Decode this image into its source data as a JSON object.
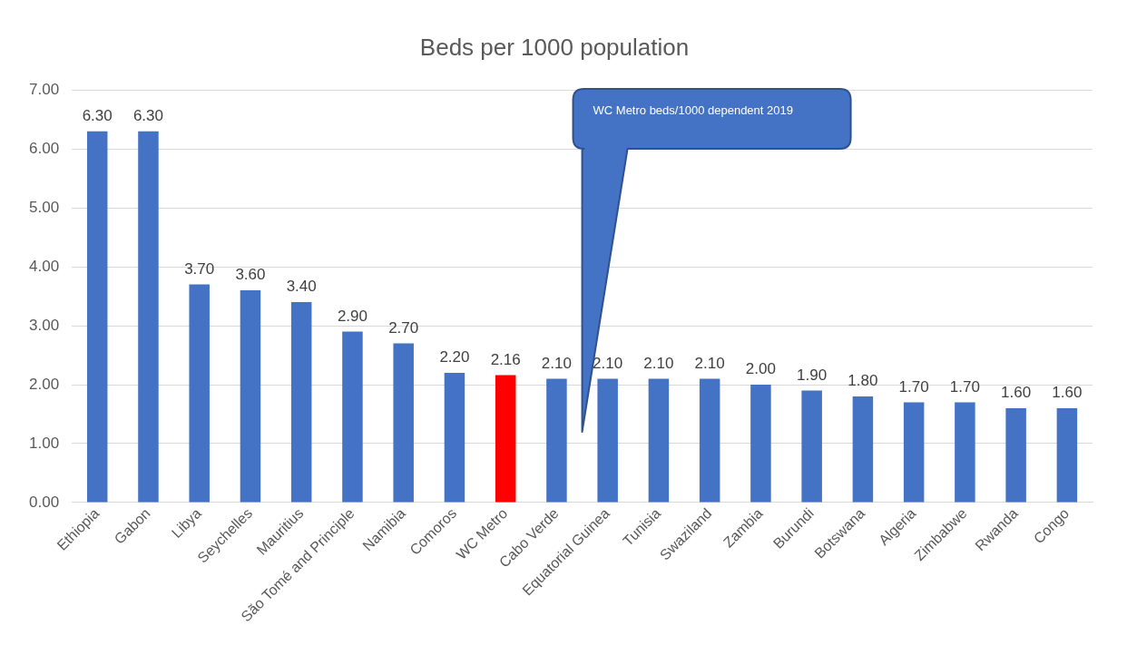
{
  "chart_data": {
    "type": "bar",
    "title": "Beds per 1000 population",
    "categories": [
      "Ethiopia",
      "Gabon",
      "Libya",
      "Seychelles",
      "Mauritius",
      "São Tomé and Principle",
      "Namibia",
      "Comoros",
      "WC Metro",
      "Cabo Verde",
      "Equatorial Guinea",
      "Tunisia",
      "Swaziland",
      "Zambia",
      "Burundi",
      "Botswana",
      "Algeria",
      "Zimbabwe",
      "Rwanda",
      "Congo"
    ],
    "values": [
      6.3,
      6.3,
      3.7,
      3.6,
      3.4,
      2.9,
      2.7,
      2.2,
      2.16,
      2.1,
      2.1,
      2.1,
      2.1,
      2.0,
      1.9,
      1.8,
      1.7,
      1.7,
      1.6,
      1.6
    ],
    "colors": [
      "#4472c4",
      "#4472c4",
      "#4472c4",
      "#4472c4",
      "#4472c4",
      "#4472c4",
      "#4472c4",
      "#4472c4",
      "#ff0000",
      "#4472c4",
      "#4472c4",
      "#4472c4",
      "#4472c4",
      "#4472c4",
      "#4472c4",
      "#4472c4",
      "#4472c4",
      "#4472c4",
      "#4472c4",
      "#4472c4"
    ],
    "value_labels": [
      "6.30",
      "6.30",
      "3.70",
      "3.60",
      "3.40",
      "2.90",
      "2.70",
      "2.20",
      "2.16",
      "2.10",
      "2.10",
      "2.10",
      "2.10",
      "2.00",
      "1.90",
      "1.80",
      "1.70",
      "1.70",
      "1.60",
      "1.60"
    ],
    "ylim": [
      0,
      7
    ],
    "yticks": [
      {
        "value": 0,
        "label": "0.00"
      },
      {
        "value": 1,
        "label": "1.00"
      },
      {
        "value": 2,
        "label": "2.00"
      },
      {
        "value": 3,
        "label": "3.00"
      },
      {
        "value": 4,
        "label": "4.00"
      },
      {
        "value": 5,
        "label": "5.00"
      },
      {
        "value": 6,
        "label": "6.00"
      },
      {
        "value": 7,
        "label": "7.00"
      }
    ],
    "grid": "y",
    "legend": false,
    "annotations": [
      "WC Metro beds/1000 dependent 2019"
    ]
  }
}
